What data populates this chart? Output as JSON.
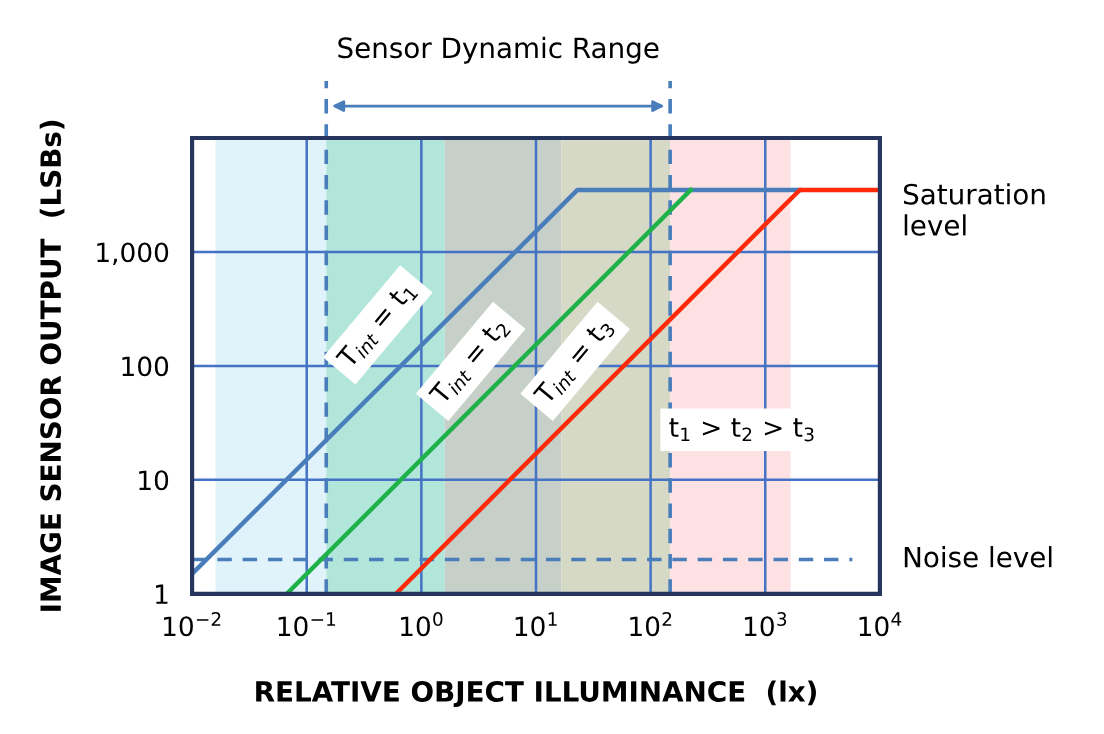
{
  "chart_data": {
    "type": "line",
    "xlabel": "RELATIVE OBJECT ILLUMINANCE  (lx)",
    "ylabel": "IMAGE SENSOR OUTPUT  (LSBs)",
    "log": "xy",
    "xlim": [
      0.01,
      10000
    ],
    "ylim": [
      1,
      10000
    ],
    "xticks": [
      {
        "value": 0.01,
        "label": "10$^{−2}$"
      },
      {
        "value": 0.1,
        "label": "10$^{−1}$"
      },
      {
        "value": 1,
        "label": "10$^{0}$"
      },
      {
        "value": 10,
        "label": "10$^{1}$"
      },
      {
        "value": 100,
        "label": "10$^{2}$"
      },
      {
        "value": 1000,
        "label": "10$^{3}$"
      },
      {
        "value": 10000,
        "label": "10$^{4}$"
      }
    ],
    "yticks": [
      1,
      10,
      100,
      {
        "value": 1000,
        "label": "1,000"
      },
      {
        "value": 10000,
        "label": null
      }
    ],
    "grid": true,
    "series": [
      {
        "color": "#4a7ebb",
        "x": [
          0.01,
          23,
          2000
        ],
        "values": [
          1.5,
          3500,
          3500
        ]
      },
      {
        "color": "#1fb24a",
        "x": [
          0.067,
          224
        ],
        "values": [
          1,
          3500
        ]
      },
      {
        "color": "#ff2a0a",
        "x": [
          0.6,
          2000,
          10000
        ],
        "values": [
          1,
          3500,
          3500
        ]
      }
    ],
    "bands": [
      {
        "axis": "x",
        "from": 0.016,
        "to": 0.148,
        "color": "#e0f3fa"
      },
      {
        "axis": "x",
        "from": 0.148,
        "to": 1.6,
        "color": "#b3e6da"
      },
      {
        "axis": "x",
        "from": 1.6,
        "to": 16.6,
        "color": "#c6cfc8"
      },
      {
        "axis": "x",
        "from": 16.6,
        "to": 148,
        "color": "#d5d9c5"
      },
      {
        "axis": "x",
        "from": 148,
        "to": 1660,
        "color": "#fde1e3"
      }
    ],
    "ref_lines": [
      {
        "axis": "x",
        "value": 0.148,
        "color": "#4a7ebb",
        "line_style": "dashed"
      },
      {
        "axis": "x",
        "value": 148,
        "color": "#4a7ebb",
        "line_style": "dashed"
      },
      {
        "axis": "y",
        "value": 2,
        "label": "Noise level",
        "color": "#4a7ebb",
        "line_style": "dashed"
      }
    ],
    "annotations": [
      "Sensor Dynamic Range",
      {
        "text": "Saturation level",
        "x": 10000,
        "y": 3500
      },
      "T$_{int}$ = t$_{1}$",
      "T$_{int}$ = t$_{2}$",
      "T$_{int}$ = t$_{3}$",
      "t$_{1}$ > t$_{2}$ > t$_{3}$"
    ]
  }
}
